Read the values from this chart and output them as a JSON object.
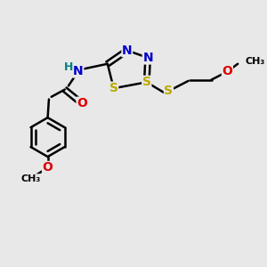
{
  "bg_color": "#e8e8e8",
  "atom_colors": {
    "C": "#000000",
    "N": "#0000cc",
    "S": "#bbaa00",
    "O": "#dd0000",
    "H": "#008080"
  },
  "bond_color": "#000000",
  "bond_width": 1.8,
  "font_size": 10,
  "figsize": [
    3.0,
    3.0
  ],
  "dpi": 100,
  "xlim": [
    0,
    10
  ],
  "ylim": [
    0,
    10
  ]
}
